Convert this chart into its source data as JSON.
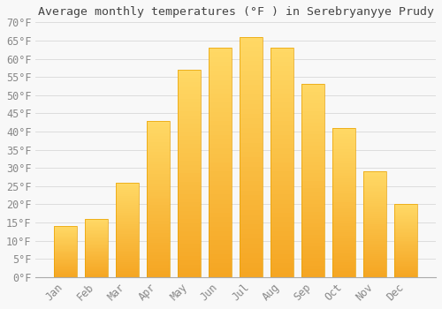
{
  "title": "Average monthly temperatures (°F ) in Serebryanyye Prudy",
  "months": [
    "Jan",
    "Feb",
    "Mar",
    "Apr",
    "May",
    "Jun",
    "Jul",
    "Aug",
    "Sep",
    "Oct",
    "Nov",
    "Dec"
  ],
  "values": [
    14,
    16,
    26,
    43,
    57,
    63,
    66,
    63,
    53,
    41,
    29,
    20
  ],
  "bar_color_bottom": "#F5A623",
  "bar_color_top": "#FFD966",
  "background_color": "#F8F8F8",
  "grid_color": "#DDDDDD",
  "tick_label_color": "#888888",
  "title_color": "#444444",
  "ylim": [
    0,
    70
  ],
  "ytick_step": 5,
  "title_fontsize": 9.5,
  "tick_fontsize": 8.5
}
